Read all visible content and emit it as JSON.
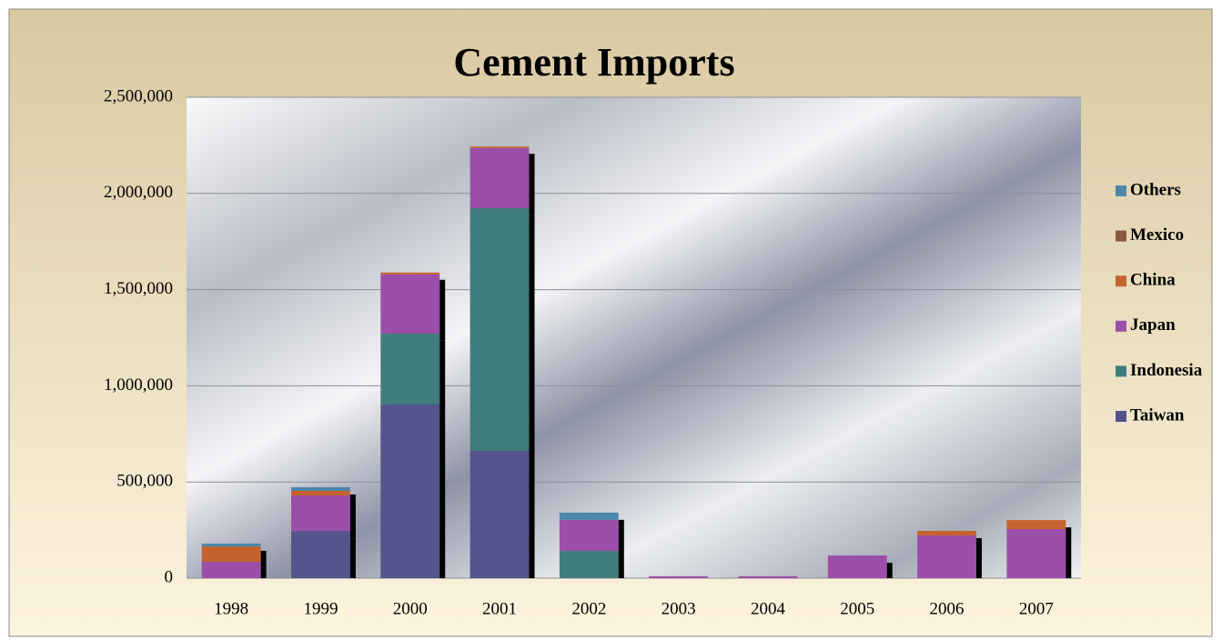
{
  "chart_data": {
    "type": "stacked_bar",
    "title": "Cement Imports",
    "categories": [
      "1998",
      "1999",
      "2000",
      "2001",
      "2002",
      "2003",
      "2004",
      "2005",
      "2006",
      "2007"
    ],
    "series": [
      {
        "name": "Taiwan",
        "color": "#52548c",
        "values": [
          0,
          245000,
          903000,
          662000,
          0,
          0,
          0,
          0,
          0,
          0
        ]
      },
      {
        "name": "Indonesia",
        "color": "#3f7d7d",
        "values": [
          0,
          0,
          369000,
          1262000,
          142000,
          0,
          0,
          0,
          0,
          0
        ]
      },
      {
        "name": "Japan",
        "color": "#9c4fa8",
        "values": [
          85000,
          185000,
          307000,
          312000,
          161000,
          10000,
          10000,
          118000,
          222000,
          255000
        ]
      },
      {
        "name": "China",
        "color": "#c4642e",
        "values": [
          80000,
          24000,
          10000,
          8000,
          0,
          0,
          0,
          0,
          24000,
          47000
        ]
      },
      {
        "name": "Mexico",
        "color": "#8a5a40",
        "values": [
          0,
          0,
          0,
          0,
          0,
          0,
          0,
          0,
          0,
          0
        ]
      },
      {
        "name": "Others",
        "color": "#4e87aa",
        "values": [
          15000,
          19000,
          0,
          0,
          38000,
          0,
          0,
          0,
          0,
          0
        ]
      }
    ],
    "ylim": [
      0,
      2500000
    ],
    "yticks": [
      0,
      {
        "value": 500000,
        "label": "500,000"
      },
      {
        "value": 1000000,
        "label": "1,000,000"
      },
      {
        "value": 1500000,
        "label": "1,500,000"
      },
      {
        "value": 2000000,
        "label": "2,000,000"
      },
      {
        "value": 2500000,
        "label": "2,500,000"
      }
    ],
    "grid": true,
    "legend": "right"
  }
}
